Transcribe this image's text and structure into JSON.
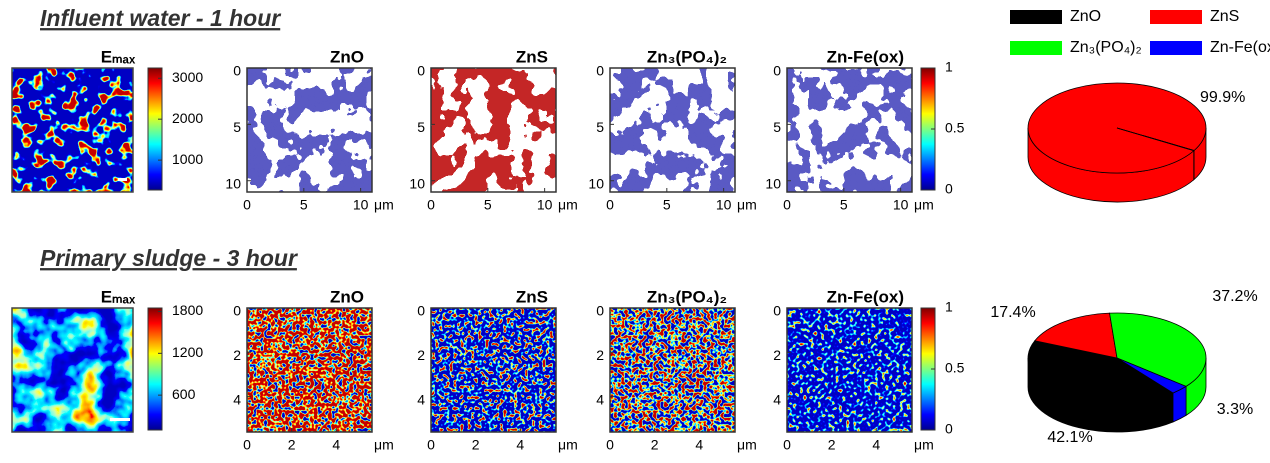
{
  "legend": {
    "names": [
      "ZnO",
      "ZnS",
      "Zn₃(PO₄)₂",
      "Zn-Fe(ox)"
    ],
    "colors": [
      "#000000",
      "#ff0000",
      "#00ff00",
      "#0000ff"
    ]
  },
  "rows": [
    {
      "title": "Influent water - 1 hour",
      "emax": {
        "label": "Eₘₐₓ",
        "colorbar": {
          "ylim": [
            270,
            3250
          ],
          "yticks": [
            1000,
            2000,
            3000
          ]
        }
      },
      "maps": {
        "titles": [
          "ZnO",
          "ZnS",
          "Zn₃(PO₄)₂",
          "Zn-Fe(ox)"
        ],
        "xlim": [
          0,
          11
        ],
        "xticks": [
          0,
          5,
          10
        ],
        "ylim": [
          0,
          11
        ],
        "yticks": [
          0,
          5,
          10
        ],
        "unit": "μm",
        "colorbar": {
          "ylim": [
            0,
            1
          ],
          "yticks": [
            0,
            0.5,
            1
          ]
        }
      },
      "pie": {
        "type": "pie",
        "values": [
          0.1,
          99.9,
          0,
          0
        ],
        "value_labels": [
          null,
          "99.9%",
          null,
          null
        ]
      }
    },
    {
      "title": "Primary sludge - 3 hour",
      "emax": {
        "label": "Eₘₐₓ",
        "colorbar": {
          "ylim": [
            100,
            1850
          ],
          "yticks": [
            600,
            1200,
            1800
          ]
        }
      },
      "maps": {
        "titles": [
          "ZnO",
          "ZnS",
          "Zn₃(PO₄)₂",
          "Zn-Fe(ox)"
        ],
        "xlim": [
          0,
          5.6
        ],
        "xticks": [
          0,
          2,
          4
        ],
        "ylim": [
          0,
          5.6
        ],
        "yticks": [
          0,
          2,
          4
        ],
        "unit": "μm",
        "colorbar": {
          "ylim": [
            0,
            1
          ],
          "yticks": [
            0,
            0.5,
            1
          ]
        }
      },
      "pie": {
        "type": "pie",
        "values": [
          42.1,
          17.4,
          37.2,
          3.3
        ],
        "value_labels": [
          "42.1%",
          "17.4%",
          "37.2%",
          "3.3%"
        ]
      }
    }
  ]
}
